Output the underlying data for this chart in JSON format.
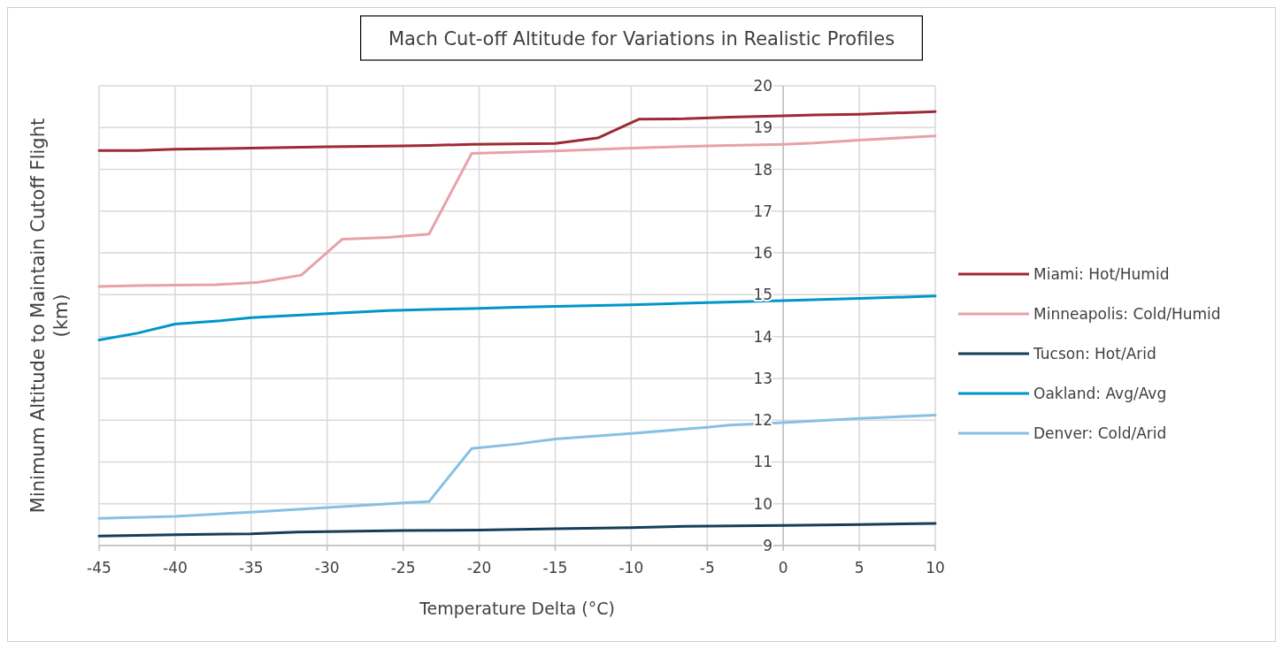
{
  "chart_data": {
    "type": "line",
    "title": "Mach Cut-off Altitude for Variations in Realistic Profiles",
    "xlabel": "Temperature Delta (°C)",
    "ylabel": "Minimum Altitude to Maintain Cutoff Flight (km)",
    "xlim": [
      -45,
      10
    ],
    "xticks": [
      -45,
      -40,
      -35,
      -30,
      -25,
      -20,
      -15,
      -10,
      -5,
      0,
      5,
      10
    ],
    "ylim": [
      9,
      20
    ],
    "yticks": [
      9,
      10,
      11,
      12,
      13,
      14,
      15,
      16,
      17,
      18,
      19,
      20
    ],
    "grid": true,
    "legend": "right",
    "marker": "none",
    "line_style": "solid",
    "series": [
      {
        "name": "Miami: Hot/Humid",
        "color": "#9e2a36",
        "x": [
          -45,
          -42.5,
          -40,
          -35,
          -30,
          -25,
          -23.3,
          -20.5,
          -15,
          -12.2,
          -9.5,
          -6.5,
          -3.5,
          0,
          2,
          5,
          10
        ],
        "values": [
          18.45,
          18.45,
          18.48,
          18.51,
          18.54,
          18.56,
          18.57,
          18.6,
          18.62,
          18.75,
          19.2,
          19.21,
          19.25,
          19.28,
          19.3,
          19.32,
          19.38
        ]
      },
      {
        "name": "Minneapolis: Cold/Humid",
        "color": "#e8a1a8",
        "x": [
          -45,
          -42.5,
          -40,
          -37.3,
          -34.5,
          -31.7,
          -29,
          -26,
          -23.3,
          -20.5,
          -15,
          -10,
          -5,
          0,
          2,
          5,
          10
        ],
        "values": [
          15.2,
          15.22,
          15.23,
          15.24,
          15.3,
          15.47,
          16.33,
          16.37,
          16.45,
          18.38,
          18.44,
          18.51,
          18.56,
          18.6,
          18.63,
          18.7,
          18.8
        ]
      },
      {
        "name": "Tucson: Hot/Arid",
        "color": "#163e5a",
        "x": [
          -45,
          -40,
          -35,
          -32,
          -25,
          -20,
          -15,
          -10,
          -6.5,
          0,
          5,
          10
        ],
        "values": [
          9.23,
          9.26,
          9.28,
          9.32,
          9.36,
          9.37,
          9.4,
          9.43,
          9.46,
          9.48,
          9.5,
          9.53
        ]
      },
      {
        "name": "Oakland: Avg/Avg",
        "color": "#0096cc",
        "x": [
          -45,
          -42.5,
          -40,
          -37,
          -35,
          -30,
          -26,
          -23.3,
          -20.5,
          -17.5,
          -15,
          -10,
          -5,
          0,
          5,
          10
        ],
        "values": [
          13.92,
          14.08,
          14.3,
          14.38,
          14.45,
          14.55,
          14.62,
          14.65,
          14.67,
          14.7,
          14.72,
          14.76,
          14.81,
          14.86,
          14.91,
          14.97
        ]
      },
      {
        "name": "Denver: Cold/Arid",
        "color": "#87c0e4",
        "x": [
          -45,
          -40,
          -35,
          -30,
          -25,
          -23.3,
          -20.5,
          -17.5,
          -15,
          -12,
          -10,
          -5,
          -3.5,
          0,
          5,
          10
        ],
        "values": [
          9.65,
          9.7,
          9.8,
          9.91,
          10.02,
          10.05,
          11.32,
          11.43,
          11.55,
          11.63,
          11.68,
          11.83,
          11.88,
          11.94,
          12.04,
          12.12
        ]
      }
    ]
  }
}
